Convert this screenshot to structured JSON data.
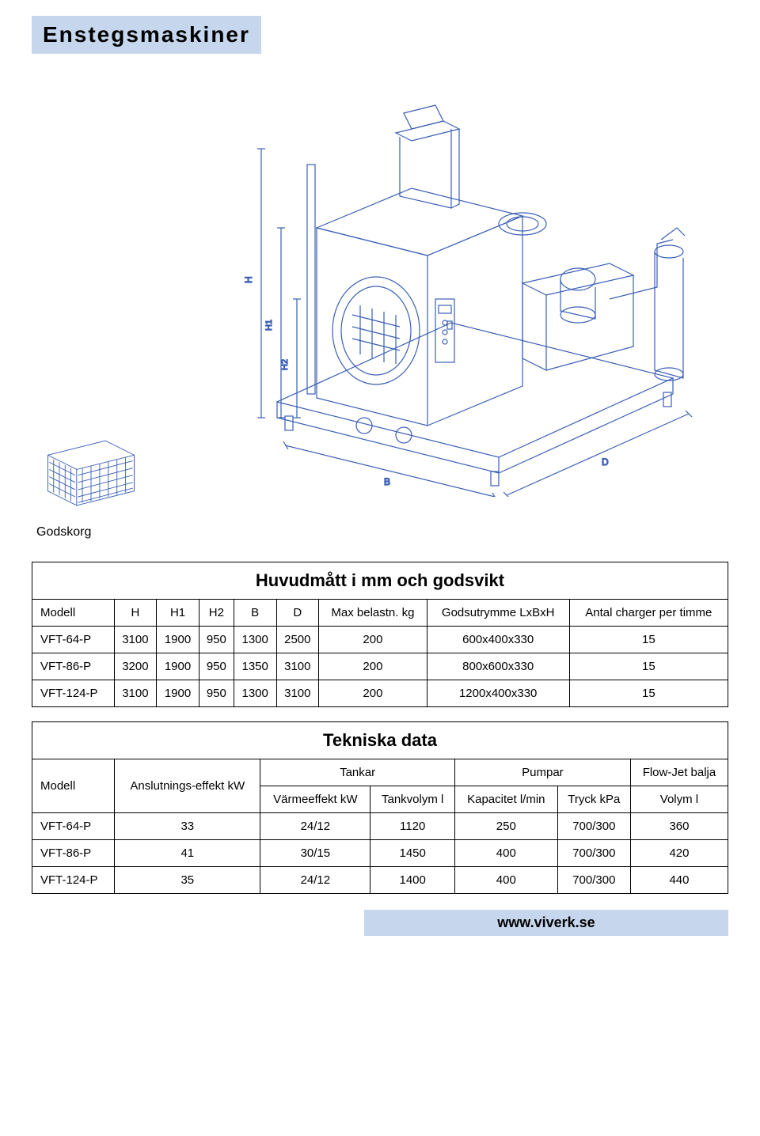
{
  "header": {
    "title": "Enstegsmaskiner"
  },
  "basket_caption": "Godskorg",
  "diagram": {
    "dim_labels": {
      "H": "H",
      "H1": "H1",
      "H2": "H2",
      "B": "B",
      "D": "D"
    },
    "line_color": "#3a5fb5",
    "line_width": 1.2,
    "bg": "#ffffff"
  },
  "table1": {
    "title": "Huvudmått i mm och godsvikt",
    "columns": [
      "Modell",
      "H",
      "H1",
      "H2",
      "B",
      "D",
      "Max belastn. kg",
      "Godsutrymme LxBxH",
      "Antal charger per timme"
    ],
    "rows": [
      [
        "VFT-64-P",
        "3100",
        "1900",
        "950",
        "1300",
        "2500",
        "200",
        "600x400x330",
        "15"
      ],
      [
        "VFT-86-P",
        "3200",
        "1900",
        "950",
        "1350",
        "3100",
        "200",
        "800x600x330",
        "15"
      ],
      [
        "VFT-124-P",
        "3100",
        "1900",
        "950",
        "1300",
        "3100",
        "200",
        "1200x400x330",
        "15"
      ]
    ]
  },
  "table2": {
    "title": "Tekniska data",
    "group_headers": {
      "tankar": "Tankar",
      "pumpar": "Pumpar",
      "flowjet": "Flow-Jet balja"
    },
    "columns": [
      "Modell",
      "Anslutnings-effekt kW",
      "Värmeeffekt kW",
      "Tankvolym l",
      "Kapacitet l/min",
      "Tryck kPa",
      "Volym l"
    ],
    "rows": [
      [
        "VFT-64-P",
        "33",
        "24/12",
        "1120",
        "250",
        "700/300",
        "360"
      ],
      [
        "VFT-86-P",
        "41",
        "30/15",
        "1450",
        "400",
        "700/300",
        "420"
      ],
      [
        "VFT-124-P",
        "35",
        "24/12",
        "1400",
        "400",
        "700/300",
        "440"
      ]
    ]
  },
  "footer": {
    "url": "www.viverk.se"
  },
  "colors": {
    "header_bg": "#c5d6ed",
    "border": "#000000",
    "text": "#000000",
    "diagram_stroke": "#3a5fb5"
  }
}
